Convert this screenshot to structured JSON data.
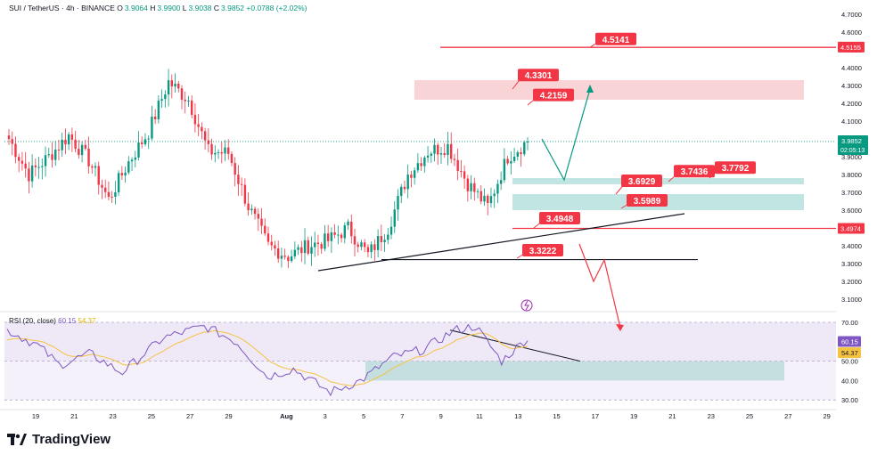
{
  "header": {
    "title": "SUI / TetherUS · 4h · BINANCE",
    "o_label": "O",
    "o": "3.9064",
    "h_label": "H",
    "h": "3.9900",
    "l_label": "L",
    "l": "3.9038",
    "c_label": "C",
    "c": "3.9852",
    "change": "+0.0788 (+2.02%)"
  },
  "rsi_header": {
    "label": "RSI (20, close)",
    "value": "60.15",
    "ma": "54.37"
  },
  "brand": "TradingView",
  "colors": {
    "up": "#089981",
    "down": "#f23645",
    "rsi": "#7e57c2",
    "rsi_ma": "#f5c242",
    "label_bg": "#f23645",
    "support_zone": "#b2dfdb",
    "resistance_zone": "#f8c9cc"
  },
  "chart_data": {
    "type": "candlestick",
    "symbol": "SUI / TetherUS",
    "interval": "4h",
    "exchange": "BINANCE",
    "y_ticks": [
      "4.7000",
      "4.6000",
      "4.5000",
      "4.4000",
      "4.3000",
      "4.2000",
      "4.1000",
      "4.0000",
      "3.9000",
      "3.8000",
      "3.7000",
      "3.6000",
      "3.5000",
      "3.4000",
      "3.3000",
      "3.2000",
      "3.1000"
    ],
    "x_ticks": [
      "19",
      "21",
      "23",
      "25",
      "27",
      "29",
      "Aug",
      "3",
      "5",
      "7",
      "9",
      "11",
      "13",
      "15",
      "17",
      "19",
      "21",
      "23",
      "25",
      "27",
      "29"
    ],
    "current_price": "3.9852",
    "countdown": "02:05:13",
    "price_tags": [
      {
        "text": "4.5155",
        "kind": "red"
      },
      {
        "text": "3.4974",
        "kind": "red"
      }
    ],
    "level_labels": [
      "4.5141",
      "4.3301",
      "4.2159",
      "3.7792",
      "3.7436",
      "3.6929",
      "3.5989",
      "3.4948",
      "3.3222"
    ],
    "swing_closes": [
      {
        "date": "Jul 18",
        "price": 4.0
      },
      {
        "date": "Jul 19",
        "price": 3.8
      },
      {
        "date": "Jul 21",
        "price": 3.9
      },
      {
        "date": "Jul 22",
        "price": 4.02
      },
      {
        "date": "Jul 23",
        "price": 3.88
      },
      {
        "date": "Jul 24",
        "price": 3.66
      },
      {
        "date": "Jul 25",
        "price": 3.87
      },
      {
        "date": "Jul 26",
        "price": 4.04
      },
      {
        "date": "Jul 27",
        "price": 4.32
      },
      {
        "date": "Jul 28",
        "price": 4.22
      },
      {
        "date": "Jul 29",
        "price": 3.93
      },
      {
        "date": "Jul 30",
        "price": 3.92
      },
      {
        "date": "Jul 31",
        "price": 3.62
      },
      {
        "date": "Aug 1",
        "price": 3.4
      },
      {
        "date": "Aug 2",
        "price": 3.34
      },
      {
        "date": "Aug 3",
        "price": 3.4
      },
      {
        "date": "Aug 4",
        "price": 3.43
      },
      {
        "date": "Aug 5",
        "price": 3.5
      },
      {
        "date": "Aug 6",
        "price": 3.35
      },
      {
        "date": "Aug 7",
        "price": 3.5
      },
      {
        "date": "Aug 8",
        "price": 3.8
      },
      {
        "date": "Aug 9",
        "price": 3.93
      },
      {
        "date": "Aug 10",
        "price": 3.96
      },
      {
        "date": "Aug 11",
        "price": 3.75
      },
      {
        "date": "Aug 12",
        "price": 3.62
      },
      {
        "date": "Aug 12.5",
        "price": 3.9
      },
      {
        "date": "Aug 13",
        "price": 3.985
      }
    ],
    "rsi": {
      "y_ticks": [
        "70.00",
        "50.00",
        "40.00",
        "30.00"
      ],
      "value": 60.15,
      "ma": 54.37
    }
  }
}
